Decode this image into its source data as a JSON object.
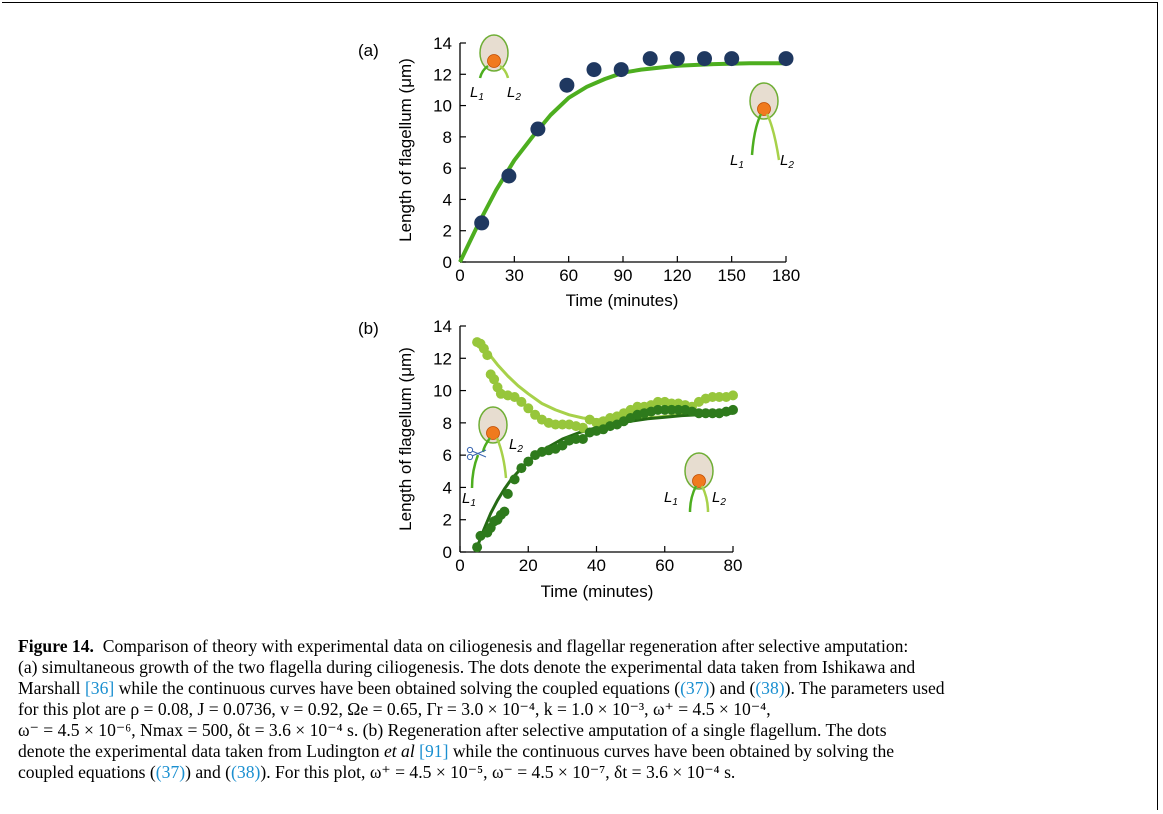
{
  "colors": {
    "dot_a": "#1f3860",
    "curve_a": "#4dae1f",
    "dots_b_light": "#97c63b",
    "curve_b_light": "#a7d14a",
    "dots_b_dark": "#2e7a1c",
    "curve_b_dark": "#256a14",
    "cell_fill": "#e7ddd0",
    "cell_border": "#6fae35",
    "nucleus": "#f07a1e",
    "ref": "#1a8fd0"
  },
  "chart_data": [
    {
      "type": "scatter",
      "panel_label": "(a)",
      "xlabel": "Time (minutes)",
      "ylabel": "Length of flagellum (μm)",
      "xlim": [
        0,
        180
      ],
      "ylim": [
        0,
        14
      ],
      "xticks": [
        "0",
        "30",
        "60",
        "90",
        "120",
        "150",
        "180"
      ],
      "yticks": [
        "0",
        "2",
        "4",
        "6",
        "8",
        "10",
        "12",
        "14"
      ],
      "grid": false,
      "series": [
        {
          "kind": "points",
          "x": [
            12,
            27,
            43,
            59,
            74,
            89,
            105,
            120,
            135,
            150,
            180
          ],
          "y": [
            2.5,
            5.5,
            8.5,
            11.3,
            12.3,
            12.3,
            13.0,
            13.0,
            13.0,
            13.0,
            13.0
          ]
        },
        {
          "kind": "curve",
          "x": [
            0,
            10,
            20,
            30,
            40,
            50,
            60,
            70,
            80,
            90,
            100,
            120,
            140,
            160,
            180
          ],
          "y": [
            0,
            2.4,
            4.6,
            6.5,
            8.0,
            9.4,
            10.5,
            11.2,
            11.7,
            12.1,
            12.3,
            12.55,
            12.65,
            12.7,
            12.7
          ]
        }
      ],
      "annotations": [
        {
          "text": "L1",
          "sub": "1",
          "base": "L"
        },
        {
          "text": "L2",
          "sub": "2",
          "base": "L"
        },
        {
          "text": "L1",
          "sub": "1",
          "base": "L"
        },
        {
          "text": "L2",
          "sub": "2",
          "base": "L"
        }
      ]
    },
    {
      "type": "scatter",
      "panel_label": "(b)",
      "xlabel": "Time (minutes)",
      "ylabel": "Length of flagellum (μm)",
      "xlim": [
        0,
        80
      ],
      "ylim": [
        0,
        14
      ],
      "xticks": [
        "0",
        "20",
        "40",
        "60",
        "80"
      ],
      "yticks": [
        "0",
        "2",
        "4",
        "6",
        "8",
        "10",
        "12",
        "14"
      ],
      "grid": false,
      "series": [
        {
          "kind": "points",
          "tone": "light",
          "x": [
            5,
            6,
            7,
            8,
            9,
            10,
            11,
            12,
            14,
            16,
            18,
            20,
            22,
            24,
            26,
            28,
            30,
            32,
            34,
            36,
            38,
            40,
            42,
            44,
            46,
            48,
            50,
            52,
            54,
            56,
            58,
            60,
            62,
            64,
            66,
            68,
            70,
            72,
            74,
            76,
            78,
            80
          ],
          "y": [
            13.0,
            12.9,
            12.6,
            12.2,
            11.0,
            10.7,
            10.2,
            9.8,
            9.7,
            9.6,
            9.3,
            8.9,
            8.5,
            8.2,
            8.0,
            7.9,
            7.9,
            7.9,
            7.8,
            7.7,
            8.2,
            8.0,
            8.1,
            8.3,
            8.4,
            8.6,
            8.8,
            9.0,
            9.0,
            9.1,
            9.3,
            9.3,
            9.2,
            9.2,
            9.1,
            9.0,
            9.3,
            9.5,
            9.6,
            9.6,
            9.6,
            9.7
          ]
        },
        {
          "kind": "curve",
          "tone": "light",
          "x": [
            5,
            8,
            11,
            14,
            17,
            20,
            24,
            28,
            32,
            36,
            40,
            45,
            50,
            55,
            60,
            65,
            70,
            75,
            80
          ],
          "y": [
            13.0,
            12.4,
            11.6,
            10.9,
            10.3,
            9.8,
            9.2,
            8.8,
            8.5,
            8.3,
            8.2,
            8.15,
            8.2,
            8.3,
            8.4,
            8.5,
            8.6,
            8.7,
            8.8
          ]
        },
        {
          "kind": "points",
          "tone": "dark",
          "x": [
            5,
            6,
            8,
            9,
            10,
            11,
            12,
            13,
            14,
            16,
            18,
            20,
            22,
            24,
            26,
            28,
            30,
            32,
            34,
            36,
            38,
            40,
            42,
            44,
            46,
            48,
            50,
            52,
            54,
            56,
            58,
            60,
            62,
            64,
            66,
            68,
            70,
            72,
            74,
            76,
            78,
            80
          ],
          "y": [
            0.3,
            1.0,
            1.2,
            1.5,
            1.9,
            2.0,
            2.3,
            2.5,
            3.6,
            4.5,
            5.2,
            5.6,
            6.0,
            6.2,
            6.3,
            6.4,
            6.6,
            6.9,
            7.0,
            7.0,
            7.4,
            7.5,
            7.6,
            7.8,
            7.9,
            8.1,
            8.3,
            8.5,
            8.6,
            8.7,
            8.8,
            8.8,
            8.8,
            8.8,
            8.8,
            8.7,
            8.6,
            8.6,
            8.6,
            8.6,
            8.7,
            8.8
          ]
        },
        {
          "kind": "curve",
          "tone": "dark",
          "x": [
            5,
            7,
            9,
            11,
            13,
            15,
            18,
            21,
            25,
            30,
            35,
            40,
            45,
            50,
            55,
            60,
            65,
            70,
            75,
            80
          ],
          "y": [
            0.3,
            1.4,
            2.4,
            3.2,
            3.9,
            4.5,
            5.2,
            5.8,
            6.4,
            7.0,
            7.4,
            7.7,
            7.9,
            8.1,
            8.25,
            8.35,
            8.45,
            8.5,
            8.55,
            8.6
          ]
        }
      ],
      "annotations": [
        {
          "text": "L1",
          "sub": "1",
          "base": "L"
        },
        {
          "text": "L2",
          "sub": "2",
          "base": "L"
        },
        {
          "text": "L1",
          "sub": "1",
          "base": "L"
        },
        {
          "text": "L2",
          "sub": "2",
          "base": "L"
        }
      ]
    }
  ],
  "caption": {
    "label": "Figure 14.",
    "lines": [
      "Comparison of theory with experimental data on ciliogenesis and flagellar regeneration after selective amputation:",
      "(a) simultaneous growth of the two flagella during ciliogenesis. The dots denote the experimental data taken from Ishikawa and",
      "Marshall",
      "[36]",
      "while the continuous curves have been obtained solving the coupled equations",
      "(37)",
      "and",
      "(38)",
      ". The parameters used",
      "for this plot are ρ = 0.08, J = 0.0736, v = 0.92, Ωe = 0.65, Γr = 3.0 × 10⁻⁴, k = 1.0 × 10⁻³, ω⁺ = 4.5 × 10⁻⁴,",
      "ω⁻ = 4.5 × 10⁻⁶, Nmax = 500, δt = 3.6 × 10⁻⁴ s. (b) Regeneration after selective amputation of a single flagellum. The dots",
      "denote the experimental data taken from Ludington",
      "et al",
      "[91]",
      "while the continuous curves have been obtained by solving the",
      "coupled equations",
      "(37)",
      "and",
      "(38)",
      ". For this plot, ω⁺ = 4.5 × 10⁻⁵, ω⁻ = 4.5 × 10⁻⁷, δt = 3.6 × 10⁻⁴ s."
    ]
  }
}
